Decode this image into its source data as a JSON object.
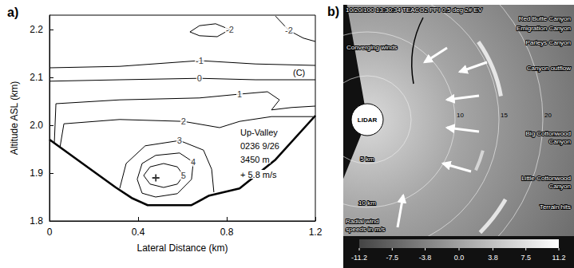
{
  "chart_data": {
    "type": "contour",
    "panel": "a)",
    "xlabel": "Lateral Distance (km)",
    "ylabel": "Altitude ASL (km)",
    "xlim": [
      0,
      1.2
    ],
    "ylim": [
      1.8,
      2.23
    ],
    "xticks": [
      0,
      0.4,
      0.8,
      1.2
    ],
    "yticks": [
      1.8,
      1.9,
      {
        "value": 2,
        "label": "2.0"
      },
      2.1,
      2.2
    ],
    "grid": false,
    "color": "#000000",
    "contours": [
      {
        "level": 5,
        "x": [
          0.425,
          0.454,
          0.515,
          0.577,
          0.605,
          0.577,
          0.515,
          0.454,
          0.425
        ],
        "y": [
          1.895,
          1.877,
          1.87,
          1.877,
          1.895,
          1.913,
          1.92,
          1.913,
          1.895
        ]
      },
      {
        "level": 4,
        "x": [
          0.418,
          0.479,
          0.577,
          0.641,
          0.649,
          0.587,
          0.479,
          0.418,
          0.396,
          0.418
        ],
        "y": [
          1.858,
          1.85,
          1.857,
          1.887,
          1.923,
          1.942,
          1.937,
          1.92,
          1.887,
          1.858
        ]
      },
      {
        "level": 3,
        "x": [
          0.317,
          0.346,
          0.432,
          0.587,
          0.695,
          0.732,
          0.742
        ],
        "y": [
          1.868,
          1.92,
          1.957,
          1.968,
          1.948,
          1.908,
          1.86
        ]
      },
      {
        "level": 2,
        "x": [
          0.047,
          0.065,
          0.317,
          0.605,
          0.768,
          0.858,
          1.002,
          1.19
        ],
        "y": [
          1.953,
          2.003,
          2.012,
          2.008,
          1.995,
          2.008,
          2.018,
          2.018
        ]
      },
      {
        "level": 1,
        "x": [
          0.022,
          0.029,
          0.317,
          0.677,
          0.858,
          0.984,
          1.038,
          1.002,
          1.092,
          1.2
        ],
        "y": [
          1.965,
          2.045,
          2.053,
          2.057,
          2.065,
          2.07,
          2.053,
          2.032,
          2.037,
          2.04
        ]
      },
      {
        "level": 0,
        "x": [
          0,
          0.317,
          0.677,
          0.93,
          1.2
        ],
        "y": [
          2.092,
          2.095,
          2.098,
          2.095,
          2.095
        ]
      },
      {
        "level": -1,
        "x": [
          0,
          0.317,
          0.677,
          0.93,
          1.2
        ],
        "y": [
          2.12,
          2.123,
          2.135,
          2.128,
          2.125
        ]
      },
      {
        "level": -2,
        "x": [
          0.634,
          0.677,
          0.757,
          0.814,
          0.75,
          0.677,
          0.634
        ],
        "y": [
          2.195,
          2.187,
          2.185,
          2.2,
          2.212,
          2.208,
          2.195
        ]
      },
      {
        "level": -2,
        "x": [
          1.02,
          1.081,
          1.146,
          1.2
        ],
        "y": [
          2.228,
          2.198,
          2.182,
          2.175
        ]
      }
    ],
    "terrain": {
      "x": [
        0,
        0.173,
        0.299,
        0.371,
        0.443,
        0.641,
        0.721,
        0.858,
        1.02,
        1.2
      ],
      "y": [
        1.97,
        1.912,
        1.87,
        1.848,
        1.833,
        1.833,
        1.853,
        1.868,
        1.928,
        2.02
      ]
    },
    "maximum": {
      "x": 0.48,
      "y": 1.89,
      "value": 5.8,
      "label": "+ 5.8 m/s"
    },
    "annotations": [
      "(C)",
      "Up-Valley",
      "0236 9/26",
      "3450 m"
    ]
  },
  "lidar_panel": {
    "panel": "b)",
    "header": "10/20/100 13:30:34 TEACO2 PPI 0.5 deg 2# EV",
    "center_label": "LIDAR",
    "range_rings_km": [
      5,
      10,
      15,
      20
    ],
    "ring_labels": [
      {
        "km": 5,
        "label": "5 km"
      },
      {
        "km": 10,
        "label": "10 km"
      },
      {
        "km": 10,
        "label": "10"
      },
      {
        "km": 15,
        "label": "15"
      },
      {
        "km": 20,
        "label": "20"
      }
    ],
    "labels": [
      "Red Butte Canyon",
      "Emigration Canyon",
      "Parleys Canyon",
      "Canyon outflow",
      "Big Cottonwood Canyon",
      "Little Cottonwood Canyon",
      "Terrain hits",
      "Converging winds"
    ],
    "colorbar": {
      "title": "Radial wind speeds in m/s",
      "range": [
        -11.2,
        11.2
      ],
      "ticks": [
        -11.2,
        -7.5,
        -3.8,
        {
          "value": 0,
          "label": "0.0"
        },
        3.8,
        7.5,
        11.2
      ]
    }
  }
}
